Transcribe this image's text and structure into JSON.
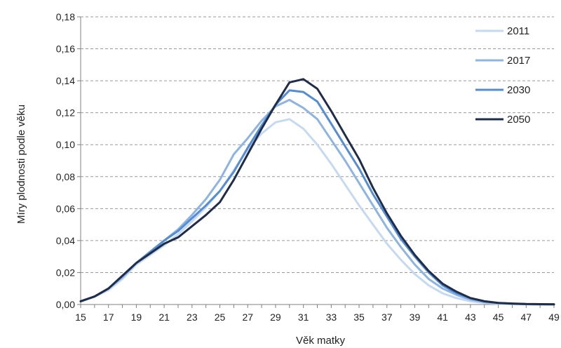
{
  "chart_data": {
    "type": "line",
    "title": "",
    "xlabel": "Věk matky",
    "ylabel": "Míry plodnosti podle věku",
    "x": [
      15,
      16,
      17,
      18,
      19,
      20,
      21,
      22,
      23,
      24,
      25,
      26,
      27,
      28,
      29,
      30,
      31,
      32,
      33,
      34,
      35,
      36,
      37,
      38,
      39,
      40,
      41,
      42,
      43,
      44,
      45,
      46,
      47,
      48,
      49
    ],
    "x_tick_labels": [
      "15",
      "17",
      "19",
      "21",
      "23",
      "25",
      "27",
      "29",
      "31",
      "33",
      "35",
      "37",
      "39",
      "41",
      "43",
      "45",
      "47",
      "49"
    ],
    "y_tick_labels": [
      "0,00",
      "0,02",
      "0,04",
      "0,06",
      "0,08",
      "0,10",
      "0,12",
      "0,14",
      "0,16",
      "0,18"
    ],
    "xlim": [
      15,
      49
    ],
    "ylim": [
      0,
      0.18
    ],
    "grid": "horizontal dashed",
    "legend_position": "top-right",
    "series": [
      {
        "name": "2011",
        "color": "#c5d9f1",
        "values": [
          0.002,
          0.005,
          0.009,
          0.016,
          0.025,
          0.031,
          0.037,
          0.044,
          0.052,
          0.061,
          0.071,
          0.084,
          0.097,
          0.107,
          0.114,
          0.116,
          0.11,
          0.1,
          0.088,
          0.075,
          0.062,
          0.05,
          0.038,
          0.028,
          0.019,
          0.012,
          0.007,
          0.004,
          0.002,
          0.001,
          0.0005,
          0.0003,
          0.0002,
          0.0001,
          0.0001
        ]
      },
      {
        "name": "2017",
        "color": "#8db4e2",
        "values": [
          0.002,
          0.005,
          0.01,
          0.017,
          0.026,
          0.033,
          0.04,
          0.047,
          0.056,
          0.066,
          0.078,
          0.094,
          0.104,
          0.115,
          0.124,
          0.128,
          0.123,
          0.116,
          0.103,
          0.09,
          0.076,
          0.062,
          0.048,
          0.036,
          0.025,
          0.016,
          0.01,
          0.006,
          0.003,
          0.0015,
          0.0008,
          0.0004,
          0.0002,
          0.0001,
          0.0001
        ]
      },
      {
        "name": "2030",
        "color": "#548dd4",
        "values": [
          0.002,
          0.005,
          0.01,
          0.018,
          0.026,
          0.033,
          0.04,
          0.046,
          0.054,
          0.062,
          0.071,
          0.083,
          0.098,
          0.112,
          0.125,
          0.134,
          0.133,
          0.127,
          0.113,
          0.099,
          0.085,
          0.069,
          0.055,
          0.041,
          0.03,
          0.02,
          0.012,
          0.007,
          0.004,
          0.002,
          0.001,
          0.0005,
          0.0002,
          0.0001,
          0.0001
        ]
      },
      {
        "name": "2050",
        "color": "#1f2d4a",
        "values": [
          0.002,
          0.005,
          0.01,
          0.018,
          0.026,
          0.032,
          0.038,
          0.042,
          0.049,
          0.056,
          0.064,
          0.078,
          0.094,
          0.11,
          0.125,
          0.139,
          0.141,
          0.135,
          0.121,
          0.106,
          0.091,
          0.073,
          0.057,
          0.043,
          0.031,
          0.021,
          0.013,
          0.008,
          0.004,
          0.002,
          0.001,
          0.0006,
          0.0003,
          0.0002,
          0.0001
        ]
      }
    ]
  }
}
